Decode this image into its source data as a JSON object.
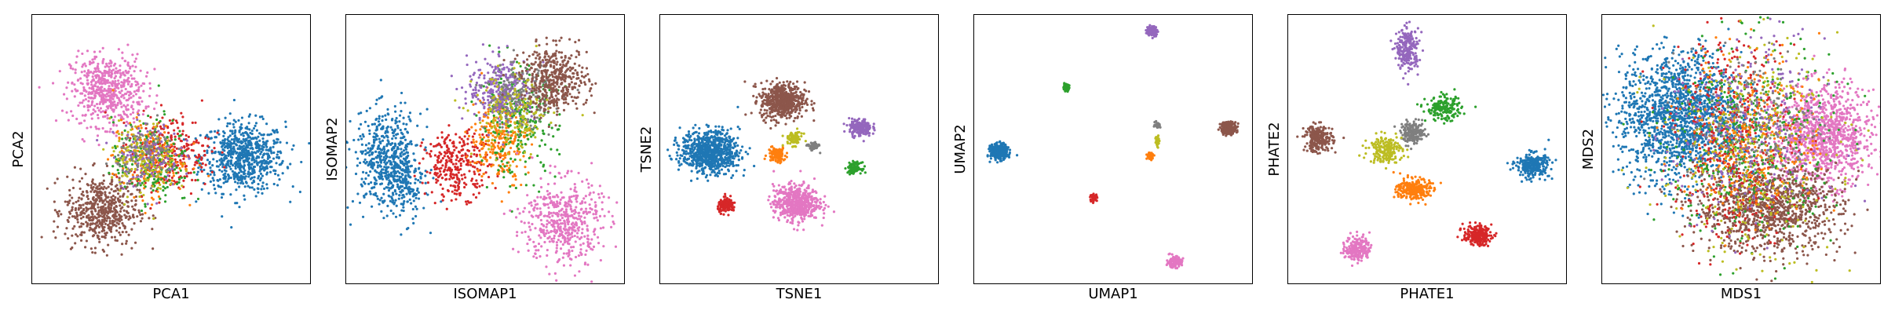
{
  "colors": {
    "blue": "#1f77b4",
    "orange": "#ff7f0e",
    "green": "#2ca02c",
    "red": "#d62728",
    "purple": "#9467bd",
    "brown": "#8c564b",
    "pink": "#e377c2",
    "gray": "#7f7f7f",
    "olive": "#bcbd22"
  },
  "chart_data": [
    {
      "type": "scatter",
      "xlabel": "PCA1",
      "ylabel": "PCA2",
      "xlim": [
        0,
        100
      ],
      "ylim": [
        0,
        100
      ],
      "grid": false,
      "ticks": false,
      "clusters": [
        {
          "color": "blue",
          "cx": 76,
          "cy": 47,
          "sx": 7.5,
          "sy": 6.5,
          "n": 700
        },
        {
          "color": "pink",
          "cx": 27,
          "cy": 72,
          "sx": 6.5,
          "sy": 6.5,
          "n": 550
        },
        {
          "color": "brown",
          "cx": 25,
          "cy": 27,
          "sx": 6.5,
          "sy": 6.5,
          "n": 550
        },
        {
          "color": "red",
          "cx": 50,
          "cy": 49,
          "sx": 7,
          "sy": 7,
          "n": 260
        },
        {
          "color": "orange",
          "cx": 42,
          "cy": 47,
          "sx": 6.5,
          "sy": 7,
          "n": 200
        },
        {
          "color": "green",
          "cx": 43,
          "cy": 45,
          "sx": 7,
          "sy": 8,
          "n": 180
        },
        {
          "color": "purple",
          "cx": 41,
          "cy": 48,
          "sx": 6,
          "sy": 6,
          "n": 150
        },
        {
          "color": "olive",
          "cx": 40,
          "cy": 46,
          "sx": 6,
          "sy": 7,
          "n": 140
        },
        {
          "color": "gray",
          "cx": 41,
          "cy": 49,
          "sx": 5,
          "sy": 5,
          "n": 90
        }
      ]
    },
    {
      "type": "scatter",
      "xlabel": "ISOMAP1",
      "ylabel": "ISOMAP2",
      "xlim": [
        0,
        100
      ],
      "ylim": [
        0,
        100
      ],
      "grid": false,
      "ticks": false,
      "clusters": [
        {
          "color": "blue",
          "cx": 15,
          "cy": 46,
          "sx": 6,
          "sy": 9,
          "n": 550
        },
        {
          "color": "blue",
          "cx": 21,
          "cy": 35,
          "sx": 3,
          "sy": 6,
          "n": 120
        },
        {
          "color": "red",
          "cx": 40,
          "cy": 44,
          "sx": 6,
          "sy": 6,
          "n": 300
        },
        {
          "color": "orange",
          "cx": 55,
          "cy": 54,
          "sx": 5,
          "sy": 8,
          "n": 260
        },
        {
          "color": "green",
          "cx": 62,
          "cy": 60,
          "sx": 7,
          "sy": 10,
          "n": 250
        },
        {
          "color": "purple",
          "cx": 56,
          "cy": 72,
          "sx": 6,
          "sy": 6,
          "n": 300
        },
        {
          "color": "gray",
          "cx": 62,
          "cy": 70,
          "sx": 6,
          "sy": 6,
          "n": 180
        },
        {
          "color": "olive",
          "cx": 60,
          "cy": 62,
          "sx": 7,
          "sy": 8,
          "n": 160
        },
        {
          "color": "brown",
          "cx": 75,
          "cy": 76,
          "sx": 6,
          "sy": 6,
          "n": 450
        },
        {
          "color": "pink",
          "cx": 78,
          "cy": 23,
          "sx": 7,
          "sy": 8,
          "n": 500
        }
      ]
    },
    {
      "type": "scatter",
      "xlabel": "TSNE1",
      "ylabel": "TSNE2",
      "xlim": [
        0,
        100
      ],
      "ylim": [
        0,
        100
      ],
      "grid": false,
      "ticks": false,
      "clusters": [
        {
          "color": "blue",
          "cx": 18,
          "cy": 49,
          "sx": 5.2,
          "sy": 3.9,
          "n": 800
        },
        {
          "color": "brown",
          "cx": 44,
          "cy": 68,
          "sx": 4.0,
          "sy": 3.4,
          "n": 550
        },
        {
          "color": "pink",
          "cx": 49,
          "cy": 30,
          "sx": 4.1,
          "sy": 3.3,
          "n": 550
        },
        {
          "color": "purple",
          "cx": 72,
          "cy": 58,
          "sx": 2.0,
          "sy": 1.6,
          "n": 200
        },
        {
          "color": "red",
          "cx": 24,
          "cy": 29,
          "sx": 1.6,
          "sy": 1.3,
          "n": 130
        },
        {
          "color": "orange",
          "cx": 42,
          "cy": 48,
          "sx": 1.6,
          "sy": 1.4,
          "n": 130
        },
        {
          "color": "green",
          "cx": 70,
          "cy": 43,
          "sx": 1.2,
          "sy": 1.0,
          "n": 100
        },
        {
          "color": "olive",
          "cx": 48,
          "cy": 54,
          "sx": 1.6,
          "sy": 1.3,
          "n": 80
        },
        {
          "color": "gray",
          "cx": 55,
          "cy": 51,
          "sx": 1.0,
          "sy": 0.8,
          "n": 50
        }
      ]
    },
    {
      "type": "scatter",
      "xlabel": "UMAP1",
      "ylabel": "UMAP2",
      "xlim": [
        0,
        100
      ],
      "ylim": [
        0,
        100
      ],
      "grid": false,
      "ticks": false,
      "clusters": [
        {
          "color": "blue",
          "cx": 9,
          "cy": 49,
          "sx": 1.5,
          "sy": 1.4,
          "n": 350
        },
        {
          "color": "brown",
          "cx": 91.5,
          "cy": 58,
          "sx": 1.4,
          "sy": 1.1,
          "n": 250
        },
        {
          "color": "purple",
          "cx": 64,
          "cy": 94,
          "sx": 0.9,
          "sy": 0.9,
          "n": 150
        },
        {
          "color": "pink",
          "cx": 72,
          "cy": 8,
          "sx": 1.3,
          "sy": 1.0,
          "n": 150
        },
        {
          "color": "green",
          "cx": 33,
          "cy": 73,
          "sx": 0.6,
          "sy": 0.6,
          "n": 60
        },
        {
          "color": "red",
          "cx": 43,
          "cy": 32,
          "sx": 0.6,
          "sy": 0.6,
          "n": 60
        },
        {
          "color": "orange",
          "cx": 63.5,
          "cy": 47.5,
          "sx": 0.6,
          "sy": 0.6,
          "n": 60
        },
        {
          "color": "olive",
          "cx": 66,
          "cy": 53,
          "sx": 0.4,
          "sy": 1.2,
          "n": 40
        },
        {
          "color": "gray",
          "cx": 66,
          "cy": 59,
          "sx": 0.5,
          "sy": 0.5,
          "n": 40
        }
      ]
    },
    {
      "type": "scatter",
      "xlabel": "PHATE1",
      "ylabel": "PHATE2",
      "xlim": [
        0,
        100
      ],
      "ylim": [
        0,
        100
      ],
      "grid": false,
      "ticks": false,
      "clusters": [
        {
          "color": "purple",
          "cx": 43,
          "cy": 87,
          "sx": 2.0,
          "sy": 3.8,
          "n": 240
        },
        {
          "color": "green",
          "cx": 56,
          "cy": 65,
          "sx": 3.2,
          "sy": 2.2,
          "n": 180
        },
        {
          "color": "brown",
          "cx": 11,
          "cy": 54,
          "sx": 2.5,
          "sy": 2.5,
          "n": 240
        },
        {
          "color": "gray",
          "cx": 45,
          "cy": 56,
          "sx": 2.2,
          "sy": 2.0,
          "n": 180
        },
        {
          "color": "olive",
          "cx": 35,
          "cy": 50,
          "sx": 3.0,
          "sy": 2.5,
          "n": 200
        },
        {
          "color": "orange",
          "cx": 45,
          "cy": 35,
          "sx": 3.0,
          "sy": 2.0,
          "n": 260
        },
        {
          "color": "blue",
          "cx": 88,
          "cy": 44,
          "sx": 3.0,
          "sy": 2.2,
          "n": 280
        },
        {
          "color": "red",
          "cx": 68,
          "cy": 18,
          "sx": 2.5,
          "sy": 1.8,
          "n": 220
        },
        {
          "color": "pink",
          "cx": 25,
          "cy": 13,
          "sx": 2.2,
          "sy": 2.5,
          "n": 200
        }
      ]
    },
    {
      "type": "scatter",
      "xlabel": "MDS1",
      "ylabel": "MDS2",
      "xlim": [
        0,
        100
      ],
      "ylim": [
        0,
        100
      ],
      "grid": false,
      "ticks": false,
      "clusters": [
        {
          "color": "blue",
          "cx": 28,
          "cy": 62,
          "sx": 11,
          "sy": 12,
          "n": 1600
        },
        {
          "color": "pink",
          "cx": 80,
          "cy": 55,
          "sx": 9,
          "sy": 9,
          "n": 1100
        },
        {
          "color": "brown",
          "cx": 60,
          "cy": 28,
          "sx": 13,
          "sy": 8,
          "n": 1100
        },
        {
          "color": "red",
          "cx": 48,
          "cy": 55,
          "sx": 11,
          "sy": 20,
          "n": 500
        },
        {
          "color": "green",
          "cx": 53,
          "cy": 52,
          "sx": 15,
          "sy": 20,
          "n": 400
        },
        {
          "color": "olive",
          "cx": 52,
          "cy": 50,
          "sx": 16,
          "sy": 20,
          "n": 350
        },
        {
          "color": "orange",
          "cx": 55,
          "cy": 55,
          "sx": 12,
          "sy": 16,
          "n": 300
        },
        {
          "color": "purple",
          "cx": 52,
          "cy": 55,
          "sx": 14,
          "sy": 18,
          "n": 280
        },
        {
          "color": "gray",
          "cx": 55,
          "cy": 60,
          "sx": 12,
          "sy": 14,
          "n": 200
        }
      ]
    }
  ]
}
